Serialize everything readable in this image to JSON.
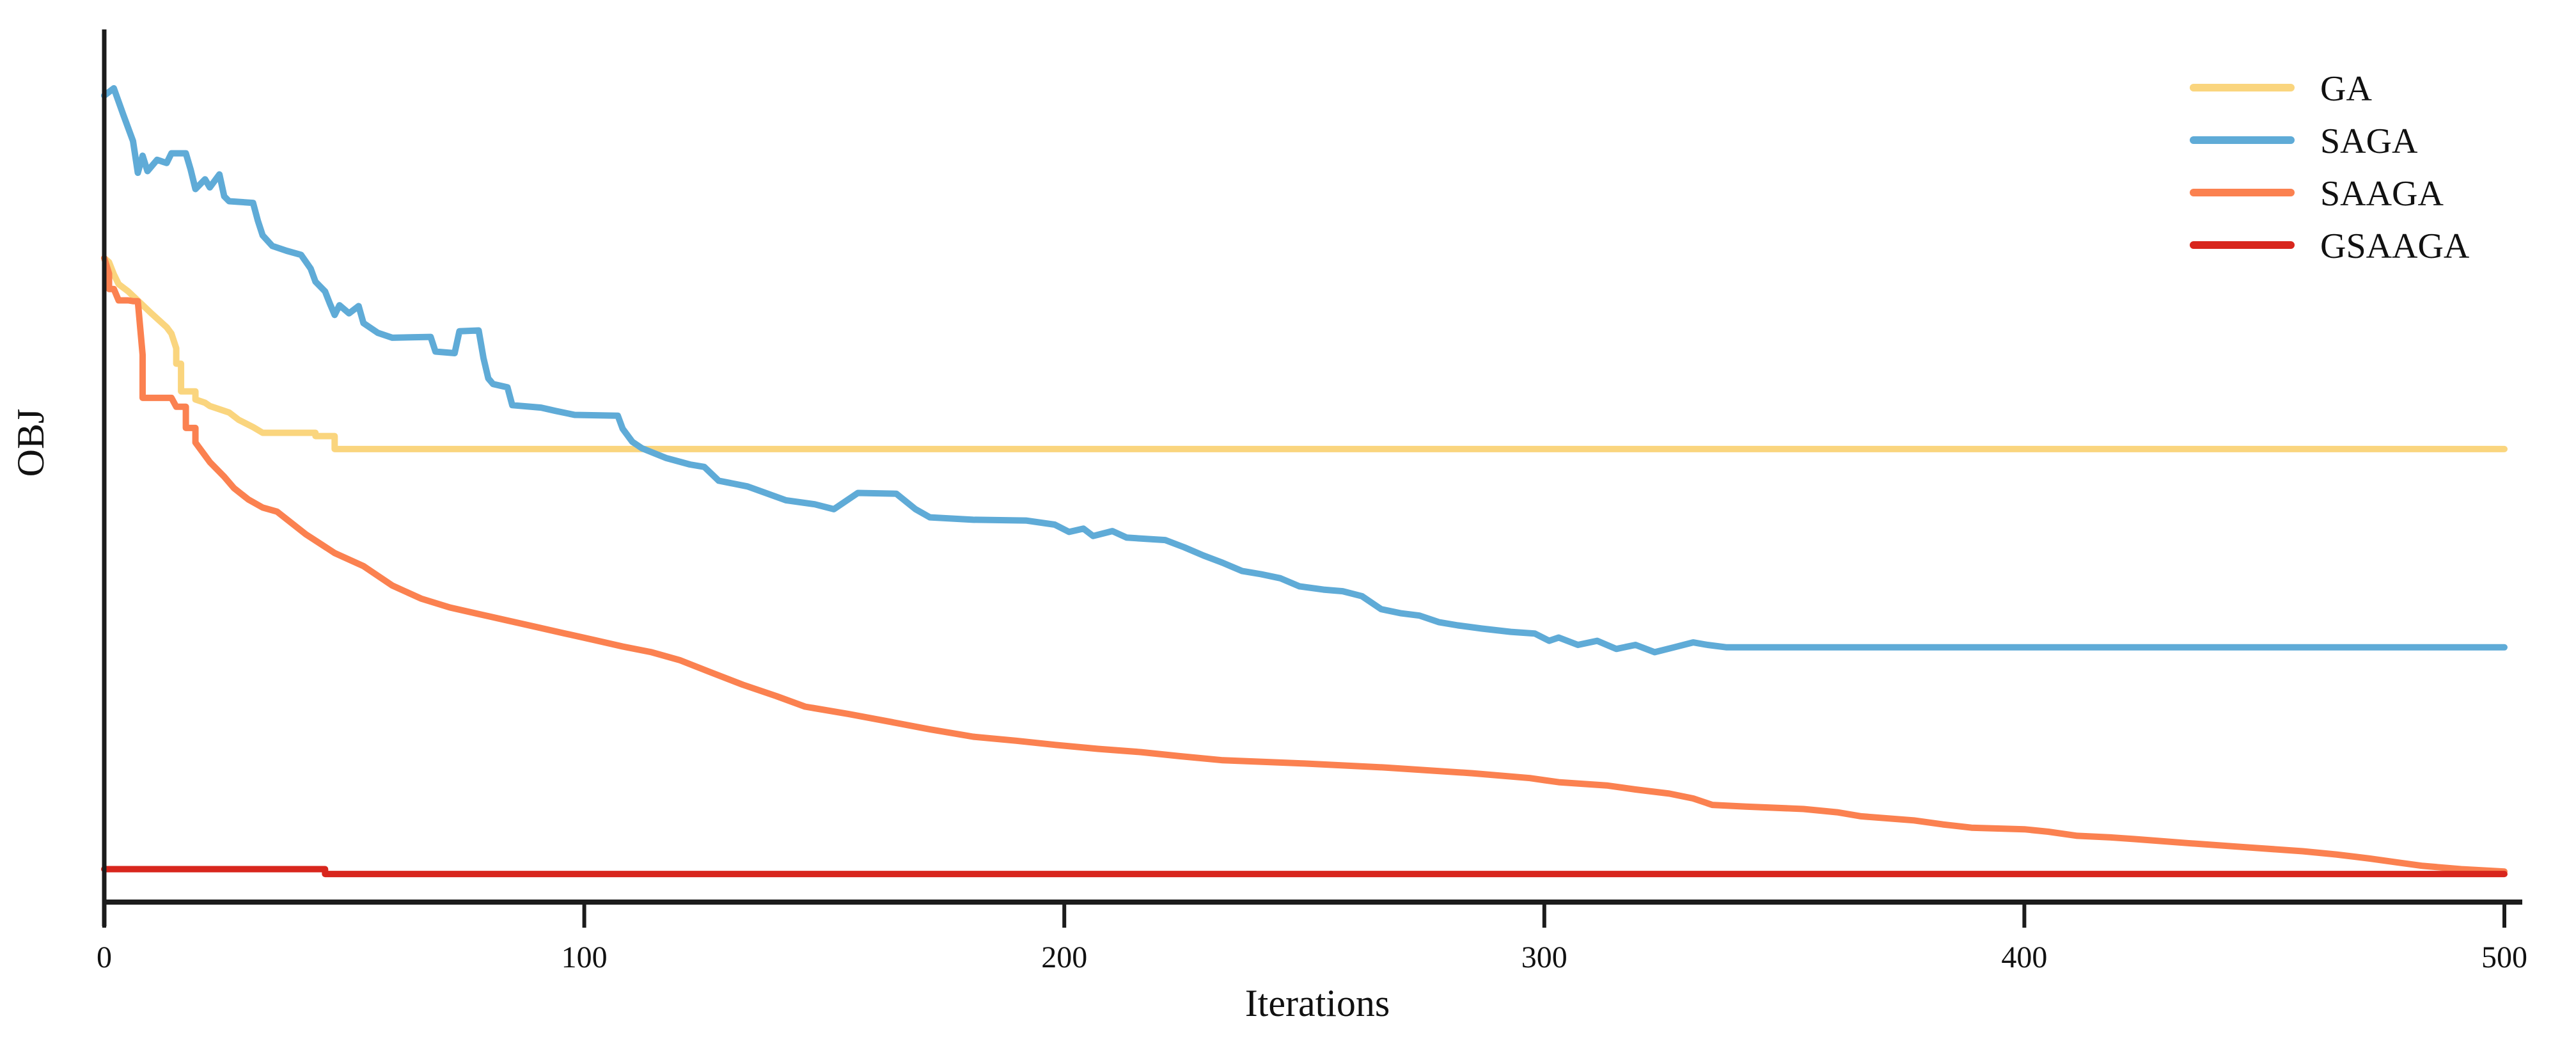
{
  "figure": {
    "background": "#ffffff",
    "axis_color": "#1c1c1c",
    "text_color": "#111111"
  },
  "chart_data": {
    "type": "line",
    "title": "",
    "xlabel": "Iterations",
    "ylabel": "OBJ",
    "xlim": [
      0,
      500
    ],
    "x_ticks": [
      0,
      100,
      200,
      300,
      400,
      500
    ],
    "y_axis_unlabeled": true,
    "y_units": "normalized objective (0 = x-axis baseline, 1 = SAGA initial peak; no tick values shown in figure)",
    "grid": false,
    "legend_position": "upper right",
    "series": [
      {
        "name": "GA",
        "color": "#FAD57E",
        "final_value": 0.556,
        "points": [
          [
            0,
            0.791
          ],
          [
            1,
            0.786
          ],
          [
            2,
            0.771
          ],
          [
            3,
            0.759
          ],
          [
            5,
            0.75
          ],
          [
            10,
            0.722
          ],
          [
            13,
            0.706
          ],
          [
            14,
            0.698
          ],
          [
            15,
            0.68
          ],
          [
            15,
            0.661
          ],
          [
            16,
            0.661
          ],
          [
            16,
            0.627
          ],
          [
            19,
            0.627
          ],
          [
            19,
            0.617
          ],
          [
            21,
            0.613
          ],
          [
            22,
            0.609
          ],
          [
            26,
            0.601
          ],
          [
            28,
            0.592
          ],
          [
            31,
            0.583
          ],
          [
            33,
            0.576
          ],
          [
            44,
            0.576
          ],
          [
            44,
            0.572
          ],
          [
            48,
            0.572
          ],
          [
            48,
            0.556
          ],
          [
            500,
            0.556
          ]
        ]
      },
      {
        "name": "SAGA",
        "color": "#5FABD7",
        "final_value": 0.312,
        "points": [
          [
            0,
            0.991
          ],
          [
            2,
            1.0
          ],
          [
            4,
            0.967
          ],
          [
            6,
            0.935
          ],
          [
            7,
            0.896
          ],
          [
            8,
            0.917
          ],
          [
            9,
            0.898
          ],
          [
            11,
            0.912
          ],
          [
            13,
            0.908
          ],
          [
            14,
            0.92
          ],
          [
            17,
            0.92
          ],
          [
            18,
            0.9
          ],
          [
            19,
            0.876
          ],
          [
            21,
            0.888
          ],
          [
            22,
            0.878
          ],
          [
            24,
            0.894
          ],
          [
            25,
            0.867
          ],
          [
            26,
            0.861
          ],
          [
            31,
            0.859
          ],
          [
            32,
            0.837
          ],
          [
            33,
            0.819
          ],
          [
            35,
            0.806
          ],
          [
            38,
            0.8
          ],
          [
            41,
            0.795
          ],
          [
            43,
            0.778
          ],
          [
            44,
            0.762
          ],
          [
            46,
            0.75
          ],
          [
            47,
            0.735
          ],
          [
            48,
            0.721
          ],
          [
            49,
            0.733
          ],
          [
            51,
            0.723
          ],
          [
            53,
            0.732
          ],
          [
            54,
            0.711
          ],
          [
            57,
            0.699
          ],
          [
            60,
            0.693
          ],
          [
            68,
            0.694
          ],
          [
            69,
            0.676
          ],
          [
            73,
            0.674
          ],
          [
            74,
            0.701
          ],
          [
            78,
            0.702
          ],
          [
            79,
            0.668
          ],
          [
            80,
            0.643
          ],
          [
            81,
            0.636
          ],
          [
            84,
            0.632
          ],
          [
            85,
            0.61
          ],
          [
            91,
            0.607
          ],
          [
            94,
            0.603
          ],
          [
            98,
            0.598
          ],
          [
            107,
            0.597
          ],
          [
            108,
            0.581
          ],
          [
            110,
            0.565
          ],
          [
            112,
            0.557
          ],
          [
            117,
            0.545
          ],
          [
            122,
            0.537
          ],
          [
            125,
            0.534
          ],
          [
            128,
            0.517
          ],
          [
            134,
            0.51
          ],
          [
            142,
            0.493
          ],
          [
            148,
            0.488
          ],
          [
            152,
            0.482
          ],
          [
            157,
            0.502
          ],
          [
            165,
            0.501
          ],
          [
            169,
            0.482
          ],
          [
            172,
            0.472
          ],
          [
            181,
            0.469
          ],
          [
            192,
            0.468
          ],
          [
            198,
            0.463
          ],
          [
            201,
            0.454
          ],
          [
            204,
            0.458
          ],
          [
            206,
            0.449
          ],
          [
            210,
            0.455
          ],
          [
            213,
            0.447
          ],
          [
            221,
            0.444
          ],
          [
            225,
            0.435
          ],
          [
            229,
            0.425
          ],
          [
            233,
            0.416
          ],
          [
            237,
            0.406
          ],
          [
            241,
            0.402
          ],
          [
            245,
            0.397
          ],
          [
            249,
            0.387
          ],
          [
            254,
            0.383
          ],
          [
            258,
            0.381
          ],
          [
            262,
            0.375
          ],
          [
            266,
            0.359
          ],
          [
            270,
            0.354
          ],
          [
            274,
            0.351
          ],
          [
            278,
            0.343
          ],
          [
            282,
            0.339
          ],
          [
            287,
            0.335
          ],
          [
            293,
            0.331
          ],
          [
            298,
            0.329
          ],
          [
            301,
            0.32
          ],
          [
            303,
            0.324
          ],
          [
            307,
            0.315
          ],
          [
            311,
            0.32
          ],
          [
            315,
            0.31
          ],
          [
            319,
            0.315
          ],
          [
            323,
            0.306
          ],
          [
            327,
            0.312
          ],
          [
            331,
            0.318
          ],
          [
            334,
            0.315
          ],
          [
            338,
            0.312
          ],
          [
            500,
            0.312
          ]
        ]
      },
      {
        "name": "SAAGA",
        "color": "#FB8150",
        "final_value": 0.036,
        "points": [
          [
            0,
            0.791
          ],
          [
            1,
            0.772
          ],
          [
            1,
            0.753
          ],
          [
            2,
            0.753
          ],
          [
            3,
            0.739
          ],
          [
            5,
            0.739
          ],
          [
            6,
            0.738
          ],
          [
            7,
            0.738
          ],
          [
            8,
            0.672
          ],
          [
            8,
            0.619
          ],
          [
            14,
            0.619
          ],
          [
            15,
            0.608
          ],
          [
            17,
            0.608
          ],
          [
            17,
            0.582
          ],
          [
            19,
            0.582
          ],
          [
            19,
            0.564
          ],
          [
            22,
            0.54
          ],
          [
            25,
            0.522
          ],
          [
            27,
            0.508
          ],
          [
            30,
            0.494
          ],
          [
            33,
            0.484
          ],
          [
            36,
            0.479
          ],
          [
            42,
            0.451
          ],
          [
            48,
            0.428
          ],
          [
            54,
            0.412
          ],
          [
            60,
            0.388
          ],
          [
            66,
            0.372
          ],
          [
            72,
            0.361
          ],
          [
            78,
            0.353
          ],
          [
            84,
            0.345
          ],
          [
            90,
            0.337
          ],
          [
            96,
            0.329
          ],
          [
            102,
            0.321
          ],
          [
            108,
            0.313
          ],
          [
            114,
            0.306
          ],
          [
            120,
            0.296
          ],
          [
            126,
            0.282
          ],
          [
            133,
            0.266
          ],
          [
            140,
            0.252
          ],
          [
            146,
            0.239
          ],
          [
            155,
            0.23
          ],
          [
            164,
            0.22
          ],
          [
            172,
            0.211
          ],
          [
            181,
            0.202
          ],
          [
            190,
            0.197
          ],
          [
            198,
            0.192
          ],
          [
            207,
            0.187
          ],
          [
            216,
            0.183
          ],
          [
            224,
            0.178
          ],
          [
            233,
            0.173
          ],
          [
            250,
            0.169
          ],
          [
            267,
            0.164
          ],
          [
            285,
            0.157
          ],
          [
            297,
            0.151
          ],
          [
            303,
            0.146
          ],
          [
            313,
            0.142
          ],
          [
            319,
            0.137
          ],
          [
            326,
            0.132
          ],
          [
            331,
            0.126
          ],
          [
            335,
            0.118
          ],
          [
            342,
            0.116
          ],
          [
            354,
            0.113
          ],
          [
            361,
            0.109
          ],
          [
            366,
            0.104
          ],
          [
            377,
            0.099
          ],
          [
            383,
            0.094
          ],
          [
            389,
            0.09
          ],
          [
            400,
            0.088
          ],
          [
            405,
            0.085
          ],
          [
            411,
            0.08
          ],
          [
            418,
            0.078
          ],
          [
            423,
            0.076
          ],
          [
            434,
            0.071
          ],
          [
            446,
            0.066
          ],
          [
            458,
            0.061
          ],
          [
            465,
            0.057
          ],
          [
            472,
            0.052
          ],
          [
            478,
            0.047
          ],
          [
            483,
            0.043
          ],
          [
            491,
            0.039
          ],
          [
            500,
            0.036
          ]
        ]
      },
      {
        "name": "GSAAGA",
        "color": "#D8261D",
        "final_value": 0.033,
        "points": [
          [
            0,
            0.039
          ],
          [
            46,
            0.039
          ],
          [
            46,
            0.033
          ],
          [
            500,
            0.033
          ]
        ]
      }
    ]
  }
}
